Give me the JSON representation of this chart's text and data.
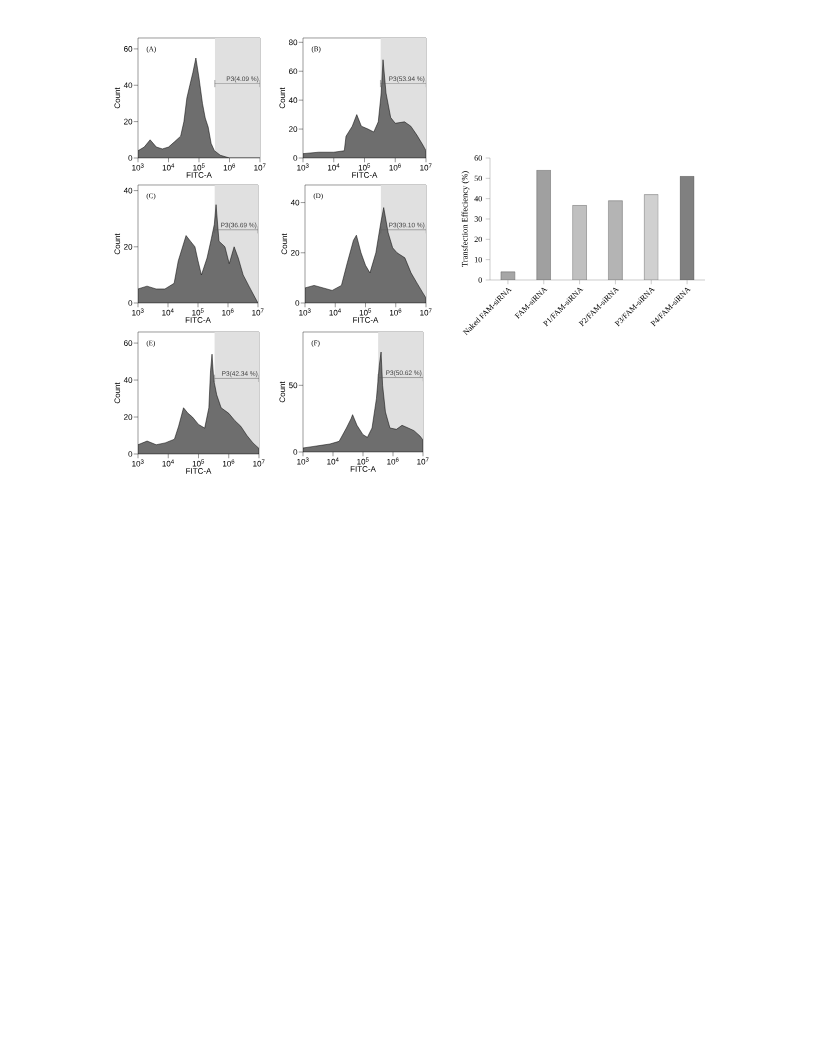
{
  "chart_data": [
    {
      "type": "area",
      "title": "(A)",
      "xlabel": "FITC-A",
      "ylabel": "Count",
      "log": "x",
      "color": "#6e6e6e",
      "xlim": [
        1000,
        10000000
      ],
      "xticks": [
        {
          "value": 1000,
          "label": "10$^{3}$"
        },
        {
          "value": 10000,
          "label": "10$^{4}$"
        },
        {
          "value": 100000,
          "label": "10$^{5}$"
        },
        {
          "value": 1000000,
          "label": "10$^{6}$"
        },
        {
          "value": 10000000,
          "label": "10$^{7}$"
        }
      ],
      "ylim": [
        0,
        66
      ],
      "yticks": [
        0,
        20,
        40,
        60
      ],
      "x": [
        1000,
        1600,
        2500,
        4000,
        6300,
        10000,
        16000,
        25000,
        32000,
        40000,
        50000,
        63000,
        79000,
        100000,
        130000,
        160000,
        200000,
        250000,
        320000,
        500000,
        1000000,
        10000000
      ],
      "values": [
        4,
        6,
        10,
        6,
        5,
        6,
        9,
        12,
        20,
        33,
        40,
        47,
        55,
        44,
        30,
        22,
        17,
        8,
        4,
        1.5,
        0,
        0
      ],
      "bands": [
        {
          "axis": "x",
          "from": 330000,
          "to": 10000000,
          "label": "P3(4.09 %)"
        }
      ]
    },
    {
      "type": "area",
      "title": "(B)",
      "xlabel": "FITC-A",
      "ylabel": "Count",
      "log": "x",
      "color": "#6e6e6e",
      "xlim": [
        1000,
        10000000
      ],
      "xticks": [
        {
          "value": 1000,
          "label": "10$^{3}$"
        },
        {
          "value": 10000,
          "label": "10$^{4}$"
        },
        {
          "value": 100000,
          "label": "10$^{5}$"
        },
        {
          "value": 1000000,
          "label": "10$^{6}$"
        },
        {
          "value": 10000000,
          "label": "10$^{7}$"
        }
      ],
      "ylim": [
        0,
        83
      ],
      "yticks": [
        0,
        20,
        40,
        60,
        80
      ],
      "x": [
        1000,
        3200,
        10000,
        22000,
        25000,
        40000,
        56000,
        79000,
        130000,
        200000,
        280000,
        350000,
        400000,
        500000,
        710000,
        1000000,
        2000000,
        3200000,
        5000000,
        7900000,
        10000000
      ],
      "values": [
        3,
        4,
        4,
        5,
        15,
        22,
        30,
        22,
        20,
        18,
        25,
        45,
        68,
        45,
        28,
        24,
        25,
        22,
        16,
        9,
        5
      ],
      "bands": [
        {
          "axis": "x",
          "from": 330000,
          "to": 10000000,
          "label": "P3(53.94 %)"
        }
      ]
    },
    {
      "type": "area",
      "title": "(C)",
      "xlabel": "FITC-A",
      "ylabel": "Count",
      "log": "x",
      "color": "#6e6e6e",
      "xlim": [
        1000,
        10000000
      ],
      "xticks": [
        {
          "value": 1000,
          "label": "10$^{3}$"
        },
        {
          "value": 10000,
          "label": "10$^{4}$"
        },
        {
          "value": 100000,
          "label": "10$^{5}$"
        },
        {
          "value": 1000000,
          "label": "10$^{6}$"
        },
        {
          "value": 10000000,
          "label": "10$^{7}$"
        }
      ],
      "ylim": [
        0,
        42
      ],
      "yticks": [
        0,
        20,
        40
      ],
      "x": [
        1000,
        2000,
        4000,
        7900,
        16000,
        22000,
        40000,
        56000,
        79000,
        100000,
        130000,
        200000,
        280000,
        350000,
        400000,
        500000,
        790000,
        1100000,
        1600000,
        2200000,
        3200000,
        5000000,
        7900000,
        10000000
      ],
      "values": [
        5,
        6,
        5,
        5,
        7,
        15,
        24,
        22,
        20,
        15,
        10,
        16,
        23,
        28,
        35,
        22,
        20,
        14,
        20,
        16,
        10,
        6,
        2,
        0
      ],
      "bands": [
        {
          "axis": "x",
          "from": 360000,
          "to": 10000000,
          "label": "P3(36.69 %)"
        }
      ]
    },
    {
      "type": "area",
      "title": "(D)",
      "xlabel": "FITC-A",
      "ylabel": "Count",
      "log": "x",
      "color": "#6e6e6e",
      "xlim": [
        1000,
        10000000
      ],
      "xticks": [
        {
          "value": 1000,
          "label": "10$^{3}$"
        },
        {
          "value": 10000,
          "label": "10$^{4}$"
        },
        {
          "value": 100000,
          "label": "10$^{5}$"
        },
        {
          "value": 1000000,
          "label": "10$^{6}$"
        },
        {
          "value": 10000000,
          "label": "10$^{7}$"
        }
      ],
      "ylim": [
        0,
        47
      ],
      "yticks": [
        0,
        20,
        40
      ],
      "x": [
        1000,
        2000,
        4000,
        7900,
        16000,
        25000,
        40000,
        50000,
        71000,
        100000,
        140000,
        220000,
        320000,
        400000,
        560000,
        790000,
        1100000,
        2000000,
        3200000,
        5000000,
        7900000,
        10000000
      ],
      "values": [
        6,
        7,
        6,
        5,
        7,
        16,
        25,
        27,
        20,
        15,
        12,
        20,
        32,
        38,
        28,
        22,
        20,
        18,
        12,
        8,
        4,
        2
      ],
      "bands": [
        {
          "axis": "x",
          "from": 320000,
          "to": 10000000,
          "label": "P3(39.10 %)"
        }
      ]
    },
    {
      "type": "area",
      "title": "(E)",
      "xlabel": "FITC-A",
      "ylabel": "Count",
      "log": "x",
      "color": "#6e6e6e",
      "xlim": [
        1000,
        10000000
      ],
      "xticks": [
        {
          "value": 1000,
          "label": "10$^{3}$"
        },
        {
          "value": 10000,
          "label": "10$^{4}$"
        },
        {
          "value": 100000,
          "label": "10$^{5}$"
        },
        {
          "value": 1000000,
          "label": "10$^{6}$"
        },
        {
          "value": 10000000,
          "label": "10$^{7}$"
        }
      ],
      "ylim": [
        0,
        66
      ],
      "yticks": [
        0,
        20,
        40,
        60
      ],
      "x": [
        1000,
        2000,
        4000,
        7900,
        16000,
        22000,
        32000,
        45000,
        63000,
        100000,
        160000,
        220000,
        250000,
        280000,
        320000,
        400000,
        560000,
        1000000,
        1600000,
        2500000,
        4000000,
        6300000,
        10000000
      ],
      "values": [
        5,
        7,
        5,
        6,
        8,
        15,
        25,
        22,
        20,
        16,
        14,
        25,
        45,
        54,
        40,
        32,
        25,
        22,
        18,
        15,
        10,
        6,
        3
      ],
      "bands": [
        {
          "axis": "x",
          "from": 340000,
          "to": 10000000,
          "label": "P3(42.34 %)"
        }
      ]
    },
    {
      "type": "area",
      "title": "(F)",
      "xlabel": "FITC-A",
      "ylabel": "Count",
      "log": "x",
      "color": "#6e6e6e",
      "xlim": [
        1000,
        10000000
      ],
      "xticks": [
        {
          "value": 1000,
          "label": "10$^{3}$"
        },
        {
          "value": 10000,
          "label": "10$^{4}$"
        },
        {
          "value": 100000,
          "label": "10$^{5}$"
        },
        {
          "value": 1000000,
          "label": "10$^{6}$"
        },
        {
          "value": 10000000,
          "label": "10$^{7}$"
        }
      ],
      "ylim": [
        0,
        90
      ],
      "yticks": [
        0,
        50
      ],
      "x": [
        1000,
        2000,
        4000,
        7900,
        16000,
        28000,
        40000,
        45000,
        63000,
        100000,
        140000,
        200000,
        280000,
        350000,
        400000,
        450000,
        560000,
        790000,
        1300000,
        2000000,
        3200000,
        5000000,
        7900000,
        10000000
      ],
      "values": [
        3,
        4,
        5,
        6,
        8,
        18,
        25,
        28,
        20,
        13,
        11,
        18,
        40,
        65,
        75,
        50,
        30,
        18,
        17,
        20,
        18,
        16,
        12,
        9
      ],
      "bands": [
        {
          "axis": "x",
          "from": 320000,
          "to": 10000000,
          "label": "P3(50.62 %)"
        }
      ]
    },
    {
      "type": "bar",
      "ylabel": "Transfection Effeciency (%)",
      "categories": [
        "Naked FAM-siRNA",
        "FAM-siRNA",
        "P1/FAM-siRNA",
        "P2/FAM-siRNA",
        "P3/FAM-siRNA",
        "P4/FAM-siRNA"
      ],
      "values": [
        4,
        54,
        36.7,
        39,
        42,
        51
      ],
      "colors": [
        "#a6a6a6",
        "#a0a0a0",
        "#c0c0c0",
        "#b4b4b4",
        "#d0d0d0",
        "#808080"
      ],
      "ylim": [
        0,
        60
      ],
      "yticks": [
        0,
        10,
        20,
        30,
        40,
        50,
        60
      ]
    }
  ]
}
